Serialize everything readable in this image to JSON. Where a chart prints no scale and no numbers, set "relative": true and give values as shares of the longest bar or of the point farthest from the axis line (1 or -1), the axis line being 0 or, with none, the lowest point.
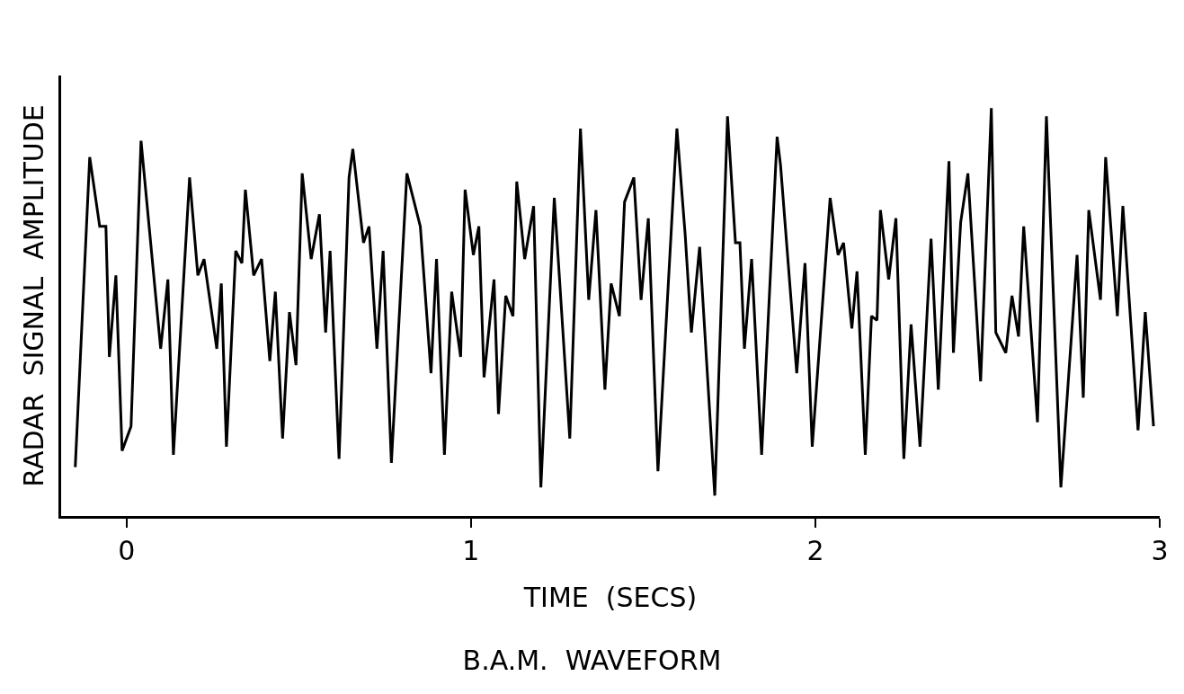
{
  "chart_data": {
    "type": "line",
    "title": "B.A.M.  WAVEFORM",
    "xlabel": "TIME  (SECS)",
    "ylabel": "RADAR  SIGNAL  AMPLITUDE",
    "relative": true,
    "xlim": [
      -0.19,
      3.0
    ],
    "xticks": [
      0,
      1,
      2,
      3
    ],
    "series": [
      {
        "color": "#000000",
        "x": [
          -0.149,
          -0.107,
          -0.078,
          -0.06,
          -0.05,
          -0.031,
          -0.013,
          0.013,
          0.042,
          0.099,
          0.12,
          0.136,
          0.183,
          0.207,
          0.225,
          0.262,
          0.275,
          0.29,
          0.317,
          0.335,
          0.345,
          0.369,
          0.392,
          0.416,
          0.432,
          0.453,
          0.473,
          0.492,
          0.51,
          0.536,
          0.56,
          0.578,
          0.591,
          0.617,
          0.646,
          0.657,
          0.688,
          0.704,
          0.727,
          0.745,
          0.769,
          0.814,
          0.853,
          0.884,
          0.9,
          0.923,
          0.944,
          0.97,
          0.983,
          1.007,
          1.023,
          1.038,
          1.067,
          1.08,
          1.101,
          1.122,
          1.133,
          1.156,
          1.182,
          1.203,
          1.242,
          1.287,
          1.318,
          1.342,
          1.363,
          1.389,
          1.407,
          1.431,
          1.446,
          1.473,
          1.494,
          1.515,
          1.543,
          1.598,
          1.622,
          1.64,
          1.664,
          1.708,
          1.745,
          1.768,
          1.781,
          1.794,
          1.815,
          1.844,
          1.889,
          1.899,
          1.946,
          1.97,
          1.991,
          2.043,
          2.066,
          2.082,
          2.106,
          2.121,
          2.145,
          2.163,
          2.179,
          2.189,
          2.213,
          2.234,
          2.257,
          2.278,
          2.304,
          2.336,
          2.357,
          2.388,
          2.401,
          2.422,
          2.443,
          2.48,
          2.511,
          2.524,
          2.553,
          2.571,
          2.59,
          2.605,
          2.645,
          2.671,
          2.713,
          2.76,
          2.778,
          2.794,
          2.828,
          2.843,
          2.877,
          2.893,
          2.937,
          2.958,
          2.982
        ],
        "values": [
          0.12,
          0.88,
          0.71,
          0.71,
          0.39,
          0.59,
          0.16,
          0.22,
          0.92,
          0.41,
          0.58,
          0.15,
          0.83,
          0.59,
          0.63,
          0.41,
          0.57,
          0.17,
          0.65,
          0.62,
          0.8,
          0.59,
          0.63,
          0.38,
          0.55,
          0.19,
          0.5,
          0.37,
          0.84,
          0.63,
          0.74,
          0.45,
          0.65,
          0.14,
          0.83,
          0.9,
          0.67,
          0.71,
          0.41,
          0.65,
          0.13,
          0.84,
          0.71,
          0.35,
          0.63,
          0.15,
          0.55,
          0.39,
          0.8,
          0.64,
          0.71,
          0.34,
          0.58,
          0.25,
          0.54,
          0.49,
          0.82,
          0.63,
          0.76,
          0.07,
          0.78,
          0.19,
          0.95,
          0.53,
          0.75,
          0.31,
          0.57,
          0.49,
          0.77,
          0.83,
          0.53,
          0.73,
          0.11,
          0.95,
          0.69,
          0.45,
          0.66,
          0.05,
          0.98,
          0.67,
          0.67,
          0.41,
          0.63,
          0.15,
          0.93,
          0.86,
          0.35,
          0.62,
          0.17,
          0.78,
          0.64,
          0.67,
          0.46,
          0.6,
          0.15,
          0.49,
          0.48,
          0.75,
          0.58,
          0.73,
          0.14,
          0.47,
          0.17,
          0.68,
          0.31,
          0.87,
          0.4,
          0.72,
          0.84,
          0.33,
          1,
          0.45,
          0.4,
          0.54,
          0.44,
          0.71,
          0.23,
          0.98,
          0.07,
          0.64,
          0.29,
          0.75,
          0.53,
          0.88,
          0.49,
          0.76,
          0.21,
          0.5,
          0.22
        ]
      }
    ]
  }
}
